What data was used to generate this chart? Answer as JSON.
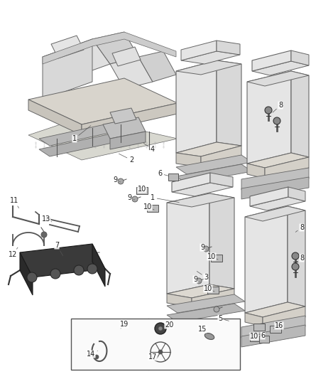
{
  "bg_color": "#ffffff",
  "fig_width": 4.38,
  "fig_height": 5.33,
  "dpi": 100,
  "line_color": "#555555",
  "seat_fill": "#e8e8e8",
  "seat_edge": "#666666",
  "rail_fill": "#c8c8c8",
  "dark_fill": "#333333",
  "label_fs": 7
}
